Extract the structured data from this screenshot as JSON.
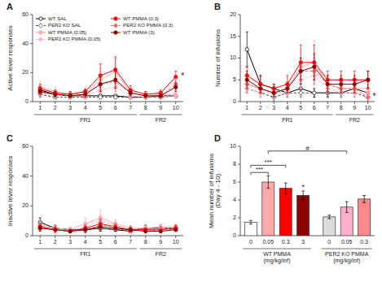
{
  "chart_data": [
    {
      "type": "line",
      "title": "A",
      "y_label": "Active lever responses",
      "x": [
        1,
        2,
        3,
        4,
        5,
        6,
        7,
        8,
        9,
        10
      ],
      "xlim": [
        0.5,
        10.5
      ],
      "xticks": [
        1,
        2,
        3,
        4,
        5,
        6,
        7,
        8,
        9,
        10
      ],
      "ylim": [
        0,
        60
      ],
      "yticks": [
        0,
        20,
        40,
        60
      ],
      "legend": "upper left",
      "series": [
        {
          "name": "WT SAL",
          "color": "#000000",
          "line_style": "solid",
          "marker": "circle-open",
          "values": [
            8,
            5,
            4,
            4,
            4,
            4,
            3,
            3,
            4,
            4
          ],
          "errors": [
            2,
            1,
            1,
            1,
            1,
            1,
            1,
            1,
            1,
            1
          ]
        },
        {
          "name": "PER2 KO SAL",
          "color": "#444444",
          "line_style": "dashed",
          "marker": "diamond-open",
          "values": [
            5,
            3,
            3,
            3,
            3,
            3,
            3,
            3,
            3,
            4
          ],
          "errors": [
            2,
            1,
            1,
            1,
            1,
            1,
            1,
            1,
            1,
            1
          ]
        },
        {
          "name": "WT PMMA (0.05)",
          "color": "#FFAAAA",
          "line_style": "solid",
          "marker": "circle",
          "values": [
            10,
            7,
            5,
            6,
            15,
            21,
            6,
            4,
            5,
            5
          ],
          "errors": [
            4,
            3,
            2,
            2,
            8,
            9,
            2,
            2,
            2,
            2
          ]
        },
        {
          "name": "PER2 KO PMMA (0.05)",
          "color": "#FFB0C8",
          "line_style": "dashed",
          "marker": "diamond",
          "values": [
            7,
            5,
            4,
            4,
            8,
            10,
            4,
            3,
            4,
            4
          ],
          "errors": [
            3,
            2,
            2,
            2,
            4,
            5,
            2,
            1,
            1,
            2
          ]
        },
        {
          "name": "WT PMMA (0.3)",
          "color": "#FF0000",
          "line_style": "solid",
          "marker": "circle",
          "values": [
            9,
            6,
            5,
            7,
            18,
            22,
            8,
            5,
            6,
            17
          ],
          "errors": [
            3,
            2,
            2,
            2,
            8,
            9,
            3,
            2,
            2,
            4
          ]
        },
        {
          "name": "PER2 KO PMMA (0.3)",
          "color": "#FF6666",
          "line_style": "dashed",
          "marker": "diamond",
          "values": [
            6,
            5,
            4,
            5,
            12,
            14,
            6,
            4,
            4,
            12
          ],
          "errors": [
            3,
            2,
            2,
            2,
            6,
            7,
            3,
            2,
            2,
            4
          ]
        },
        {
          "name": "WT PMMA (3)",
          "color": "#8B0000",
          "line_style": "solid",
          "marker": "circle",
          "values": [
            7,
            5,
            4,
            5,
            12,
            15,
            6,
            4,
            4,
            10
          ],
          "errors": [
            2,
            2,
            1,
            2,
            5,
            6,
            2,
            1,
            1,
            3
          ]
        }
      ],
      "annotations": [
        {
          "text": "*",
          "x": 10.35,
          "y": 17
        }
      ],
      "groups": [
        {
          "label": "FR1",
          "from": 1,
          "to": 7
        },
        {
          "label": "FR2",
          "from": 8,
          "to": 10
        }
      ]
    },
    {
      "type": "line",
      "title": "B",
      "y_label": "Number of infusions",
      "x": [
        1,
        2,
        3,
        4,
        5,
        6,
        7,
        8,
        9,
        10
      ],
      "xlim": [
        0.5,
        10.5
      ],
      "xticks": [
        1,
        2,
        3,
        4,
        5,
        6,
        7,
        8,
        9,
        10
      ],
      "ylim": [
        0,
        20
      ],
      "yticks": [
        0,
        5,
        10,
        15,
        20
      ],
      "series": [
        {
          "color": "#000000",
          "line_style": "solid",
          "marker": "circle-open",
          "values": [
            12,
            4,
            3,
            2,
            3,
            2,
            2,
            2,
            3,
            2
          ],
          "errors": [
            4,
            2,
            1,
            1,
            1,
            1,
            1,
            1,
            1,
            1
          ]
        },
        {
          "color": "#444444",
          "line_style": "dashed",
          "marker": "diamond-open",
          "values": [
            3,
            2,
            1,
            2,
            2,
            2,
            2,
            2,
            2,
            1
          ],
          "errors": [
            1,
            1,
            1,
            1,
            1,
            1,
            1,
            1,
            1,
            1
          ]
        },
        {
          "color": "#FFAAAA",
          "line_style": "solid",
          "marker": "circle",
          "values": [
            4,
            3,
            2,
            3,
            8,
            9,
            4,
            3,
            3,
            3
          ],
          "errors": [
            2,
            1,
            1,
            1,
            4,
            5,
            2,
            1,
            1,
            1
          ]
        },
        {
          "color": "#FFB0C8",
          "line_style": "dashed",
          "marker": "diamond",
          "values": [
            3,
            2,
            2,
            2,
            5,
            6,
            3,
            2,
            2,
            2
          ],
          "errors": [
            1,
            1,
            1,
            1,
            2,
            3,
            1,
            1,
            1,
            1
          ]
        },
        {
          "color": "#FF0000",
          "line_style": "solid",
          "marker": "circle",
          "values": [
            6,
            4,
            3,
            4,
            9,
            9,
            5,
            5,
            5,
            5
          ],
          "errors": [
            2,
            2,
            1,
            2,
            4,
            4,
            2,
            2,
            2,
            2
          ]
        },
        {
          "color": "#FF6666",
          "line_style": "dashed",
          "marker": "diamond",
          "values": [
            4,
            3,
            2,
            3,
            7,
            7,
            4,
            3,
            3,
            1
          ],
          "errors": [
            2,
            1,
            1,
            1,
            3,
            3,
            2,
            1,
            1,
            1
          ]
        },
        {
          "color": "#8B0000",
          "line_style": "solid",
          "marker": "circle",
          "values": [
            5,
            3,
            2,
            3,
            7,
            8,
            4,
            4,
            4,
            5
          ],
          "errors": [
            2,
            1,
            1,
            1,
            3,
            3,
            2,
            2,
            2,
            2
          ]
        }
      ],
      "annotations": [
        {
          "text": "*",
          "x": 10.35,
          "y": 1.0
        }
      ],
      "groups": [
        {
          "label": "FR1",
          "from": 1,
          "to": 7
        },
        {
          "label": "FR2",
          "from": 8,
          "to": 10
        }
      ]
    },
    {
      "type": "line",
      "title": "C",
      "y_label": "Inactive lever responses",
      "x": [
        1,
        2,
        3,
        4,
        5,
        6,
        7,
        8,
        9,
        10
      ],
      "xlim": [
        0.5,
        10.5
      ],
      "xticks": [
        1,
        2,
        3,
        4,
        5,
        6,
        7,
        8,
        9,
        10
      ],
      "ylim": [
        0,
        60
      ],
      "yticks": [
        0,
        20,
        40,
        60
      ],
      "series": [
        {
          "color": "#000000",
          "line_style": "solid",
          "marker": "circle-open",
          "values": [
            9,
            5,
            4,
            4,
            5,
            4,
            3,
            5,
            5,
            5
          ],
          "errors": [
            3,
            2,
            1,
            1,
            2,
            1,
            1,
            2,
            2,
            2
          ]
        },
        {
          "color": "#444444",
          "line_style": "dashed",
          "marker": "diamond-open",
          "values": [
            7,
            5,
            4,
            4,
            5,
            4,
            4,
            5,
            5,
            5
          ],
          "errors": [
            3,
            2,
            1,
            1,
            2,
            1,
            1,
            2,
            2,
            2
          ]
        },
        {
          "color": "#FFAAAA",
          "line_style": "solid",
          "marker": "circle",
          "values": [
            7,
            5,
            4,
            8,
            12,
            8,
            5,
            5,
            6,
            6
          ],
          "errors": [
            3,
            2,
            2,
            4,
            5,
            3,
            2,
            2,
            2,
            2
          ]
        },
        {
          "color": "#FFB0C8",
          "line_style": "dashed",
          "marker": "diamond",
          "values": [
            6,
            4,
            3,
            6,
            10,
            7,
            4,
            4,
            5,
            5
          ],
          "errors": [
            2,
            2,
            1,
            3,
            4,
            3,
            2,
            2,
            2,
            2
          ]
        },
        {
          "color": "#FF0000",
          "line_style": "solid",
          "marker": "circle",
          "values": [
            6,
            4,
            3,
            5,
            8,
            6,
            4,
            4,
            4,
            5
          ],
          "errors": [
            2,
            2,
            1,
            2,
            3,
            2,
            2,
            1,
            2,
            2
          ]
        },
        {
          "color": "#FF6666",
          "line_style": "dashed",
          "marker": "diamond",
          "values": [
            5,
            4,
            3,
            4,
            7,
            6,
            4,
            3,
            4,
            4
          ],
          "errors": [
            2,
            1,
            1,
            2,
            3,
            2,
            2,
            1,
            1,
            1
          ]
        },
        {
          "color": "#8B0000",
          "line_style": "solid",
          "marker": "circle",
          "values": [
            5,
            4,
            3,
            4,
            6,
            5,
            4,
            3,
            3,
            4
          ],
          "errors": [
            2,
            1,
            1,
            2,
            2,
            2,
            1,
            1,
            1,
            1
          ]
        }
      ],
      "groups": [
        {
          "label": "FR1",
          "from": 1,
          "to": 7
        },
        {
          "label": "FR2",
          "from": 8,
          "to": 10
        }
      ]
    },
    {
      "type": "bar",
      "title": "D",
      "y_label": "Mean number of infusions\n(Day 4 - 10)",
      "categories": [
        "0",
        "0.05",
        "0.3",
        "3",
        "0",
        "0.05",
        "0.3"
      ],
      "values": [
        1.5,
        6.0,
        5.3,
        4.5,
        2.1,
        3.2,
        4.1
      ],
      "errors": [
        0.2,
        0.7,
        0.6,
        0.5,
        0.2,
        0.6,
        0.4
      ],
      "colors": [
        "#FFFFFF",
        "#FFAAAA",
        "#FF0000",
        "#8B0000",
        "#DDDDDD",
        "#FFB0C8",
        "#FF8888"
      ],
      "ylim": [
        0,
        10
      ],
      "yticks": [
        0,
        2,
        4,
        6,
        8,
        10
      ],
      "groups": [
        {
          "label": "WT PMMA\n(mg/kg/inf)",
          "from": 0,
          "to": 3
        },
        {
          "label": "PER2 KO PMMA\n(mg/kg/inf)",
          "from": 4,
          "to": 6
        }
      ],
      "annotations": [
        {
          "text": "***",
          "from": 0,
          "to": 1,
          "y": 6.8
        },
        {
          "text": "***",
          "from": 0,
          "to": 2,
          "y": 7.6
        },
        {
          "text": "*",
          "x": 3,
          "y": 5.2
        },
        {
          "text": "#",
          "from": 1,
          "to": 5,
          "y": 9.2
        }
      ]
    }
  ]
}
